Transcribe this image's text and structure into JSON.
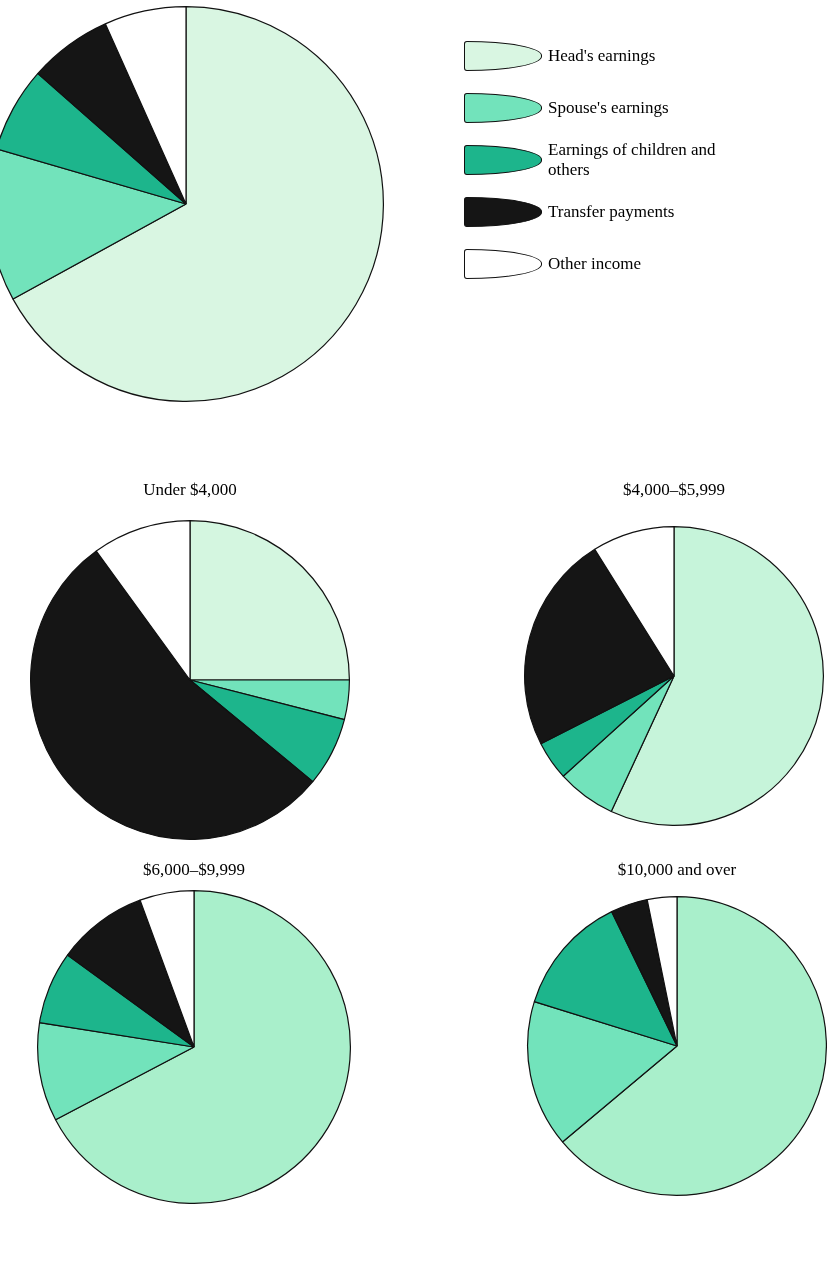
{
  "chart_data": [
    {
      "type": "pie",
      "categories": [
        "Head's earnings",
        "Spouse's earnings",
        "Earnings of children and others",
        "Transfer payments",
        "Other income"
      ],
      "values": [
        67,
        12.5,
        7,
        6.8,
        6.7
      ],
      "colors": [
        "#d9f6e2",
        "#72e3bb",
        "#1db58c",
        "#151515",
        "#ffffff"
      ],
      "legend": "right"
    },
    {
      "type": "pie",
      "title": "Under $4,000",
      "categories": [
        null,
        null,
        null,
        null,
        null
      ],
      "values": [
        25,
        4,
        7,
        54,
        10
      ],
      "colors": [
        "#d4f6e0",
        "#72e3bb",
        "#1db58c",
        "#151515",
        "#ffffff"
      ]
    },
    {
      "type": "pie",
      "title": "$4,000–$5,999",
      "categories": [
        null,
        null,
        null,
        null,
        null
      ],
      "values": [
        56.9,
        6.4,
        4.2,
        23.6,
        8.9
      ],
      "colors": [
        "#c6f4da",
        "#72e3bb",
        "#1db58c",
        "#151515",
        "#ffffff"
      ]
    },
    {
      "type": "pie",
      "title": "$6,000–$9,999",
      "categories": [
        null,
        null,
        null,
        null,
        null
      ],
      "values": [
        67.3,
        10.2,
        7.5,
        9.4,
        5.6
      ],
      "colors": [
        "#a9efcb",
        "#72e3bb",
        "#1db58c",
        "#151515",
        "#ffffff"
      ]
    },
    {
      "type": "pie",
      "title": "$10,000 and over",
      "categories": [
        null,
        null,
        null,
        null,
        null
      ],
      "values": [
        63.9,
        15.9,
        13,
        4,
        3.2
      ],
      "colors": [
        "#a9efcb",
        "#72e3bb",
        "#1db58c",
        "#151515",
        "#ffffff"
      ]
    }
  ]
}
